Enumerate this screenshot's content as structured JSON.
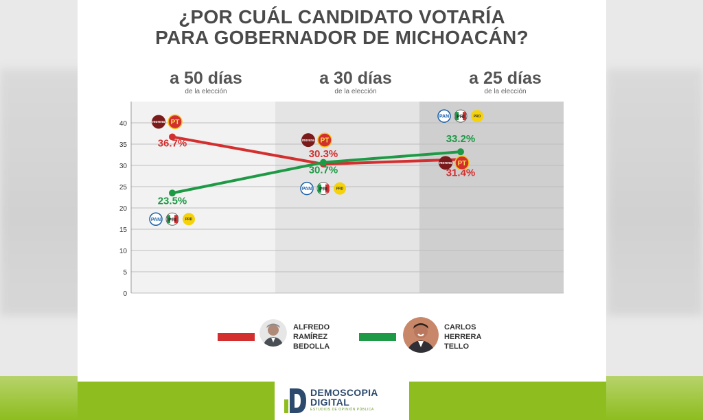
{
  "title_line1": "¿POR CUÁL CANDIDATO VOTARÍA",
  "title_line2": "PARA GOBERNADOR DE MICHOACÁN?",
  "periods": [
    {
      "label": "a 50 días",
      "sub": "de la elección"
    },
    {
      "label": "a 30 días",
      "sub": "de la elección"
    },
    {
      "label": "a 25 días",
      "sub": "de la elección"
    }
  ],
  "colors": {
    "red": "#d32f2f",
    "green": "#1e9a46",
    "panel1": "#f2f2f2",
    "panel2": "#e4e4e4",
    "panel3": "#cfcfcf"
  },
  "party_logos": {
    "morena": "morena",
    "pt": "PT",
    "pan": "PAN",
    "pri": "PRI",
    "prd": "PRD"
  },
  "legend": [
    {
      "name_lines": [
        "ALFREDO",
        "RAMÍREZ",
        "BEDOLLA"
      ],
      "color": "#d32f2f"
    },
    {
      "name_lines": [
        "CARLOS",
        "HERRERA",
        "TELLO"
      ],
      "color": "#1e9a46"
    }
  ],
  "footer": {
    "brand_line1": "DEMOSCOPIA",
    "brand_line2": "DIGITAL",
    "tagline": "ESTUDIOS DE OPINIÓN PÚBLICA"
  },
  "chart_data": {
    "type": "line",
    "title": "¿POR CUÁL CANDIDATO VOTARÍA PARA GOBERNADOR DE MICHOACÁN?",
    "categories": [
      "a 50 días",
      "a 30 días",
      "a 25 días"
    ],
    "series": [
      {
        "name": "Alfredo Ramírez Bedolla",
        "values": [
          36.7,
          30.3,
          31.4
        ],
        "labels": [
          "36.7%",
          "30.3%",
          "31.4%"
        ],
        "color": "#d32f2f"
      },
      {
        "name": "Carlos Herrera Tello",
        "values": [
          23.5,
          30.7,
          33.2
        ],
        "labels": [
          "23.5%",
          "30.7%",
          "33.2%"
        ],
        "color": "#1e9a46"
      }
    ],
    "y_ticks": [
      0,
      5,
      10,
      15,
      20,
      25,
      30,
      35,
      40
    ],
    "ylim": [
      0,
      45
    ],
    "grid": true
  }
}
